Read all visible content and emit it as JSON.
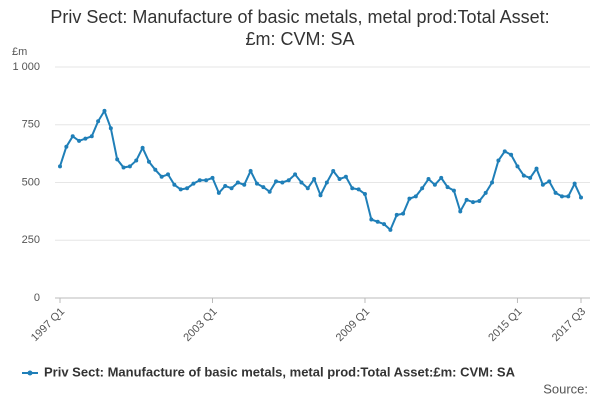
{
  "chart_data": {
    "type": "line",
    "title": "Priv Sect: Manufacture of basic metals, metal prod:Total Asset:£m: CVM: SA",
    "y_unit": "£m",
    "source": "Source:",
    "categories": [
      "1997 Q1",
      null,
      null,
      null,
      null,
      null,
      null,
      null,
      null,
      null,
      null,
      null,
      null,
      null,
      null,
      null,
      null,
      null,
      null,
      null,
      null,
      null,
      null,
      null,
      "2003 Q1",
      null,
      null,
      null,
      null,
      null,
      null,
      null,
      null,
      null,
      null,
      null,
      null,
      null,
      null,
      null,
      null,
      null,
      null,
      null,
      null,
      null,
      null,
      null,
      "2009 Q1",
      null,
      null,
      null,
      null,
      null,
      null,
      null,
      null,
      null,
      null,
      null,
      null,
      null,
      null,
      null,
      null,
      null,
      null,
      null,
      null,
      null,
      null,
      null,
      "2015 Q1",
      null,
      null,
      null,
      null,
      null,
      null,
      null,
      null,
      null,
      "2017 Q3"
    ],
    "series": [
      {
        "name": "Priv Sect: Manufacture of basic metals, metal prod:Total Asset:£m: CVM: SA",
        "color": "#1f7fb8",
        "values": [
          570,
          655,
          700,
          680,
          690,
          700,
          765,
          810,
          735,
          600,
          565,
          570,
          595,
          650,
          590,
          555,
          525,
          535,
          490,
          470,
          475,
          495,
          510,
          510,
          520,
          455,
          485,
          475,
          500,
          490,
          550,
          495,
          480,
          460,
          505,
          500,
          510,
          535,
          500,
          475,
          515,
          445,
          500,
          550,
          515,
          525,
          475,
          470,
          450,
          340,
          330,
          320,
          295,
          360,
          365,
          430,
          440,
          475,
          515,
          490,
          520,
          480,
          465,
          375,
          425,
          415,
          420,
          455,
          500,
          595,
          635,
          620,
          570,
          530,
          520,
          560,
          490,
          505,
          455,
          440,
          440,
          495,
          435
        ]
      }
    ],
    "ylim": [
      0,
      1000
    ],
    "yticks": [
      0,
      250,
      500,
      750,
      {
        "value": 1000,
        "label": "1 000"
      }
    ],
    "grid": true
  }
}
